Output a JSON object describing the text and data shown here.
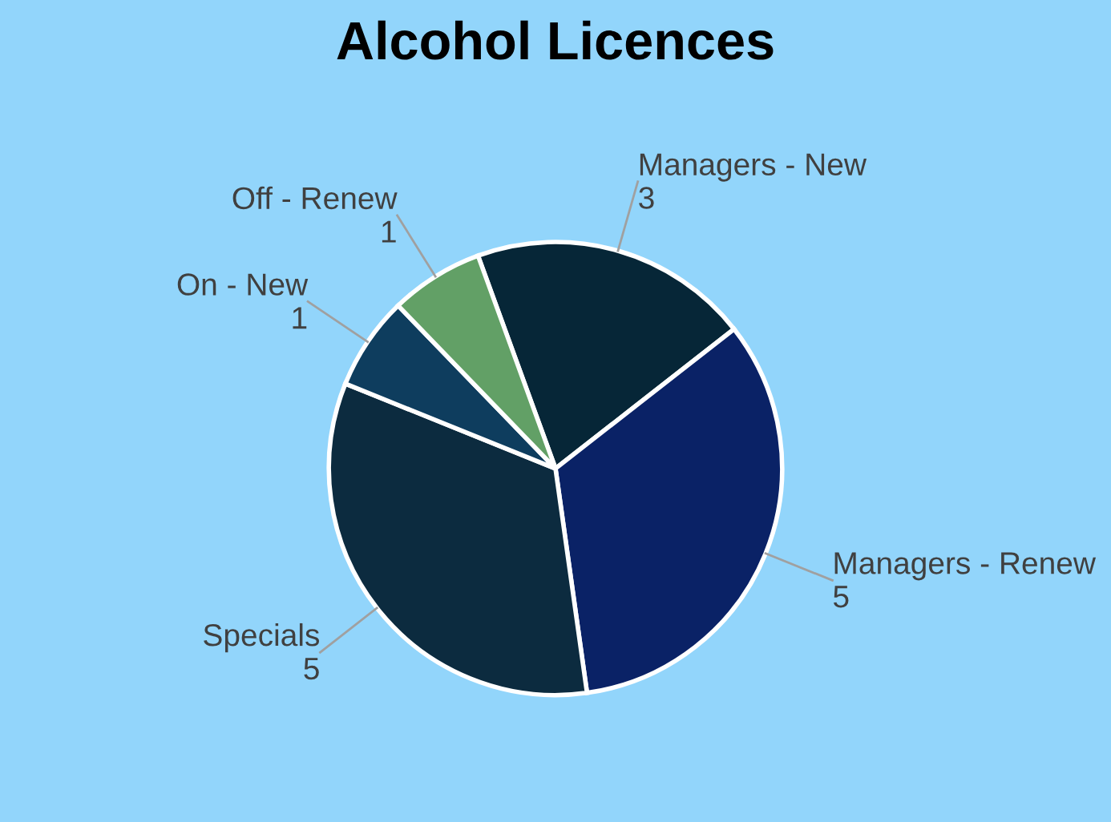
{
  "chart_data": {
    "type": "pie",
    "title": "Alcohol Licences",
    "categories": [
      "Managers - New",
      "Managers - Renew",
      "Specials",
      "On - New",
      "Off - Renew"
    ],
    "values": [
      3,
      5,
      5,
      1,
      1
    ],
    "colors": [
      "#062637",
      "#0a2266",
      "#0c2b3f",
      "#0e3d5e",
      "#62a066"
    ],
    "data_labels": true,
    "legend": false
  }
}
